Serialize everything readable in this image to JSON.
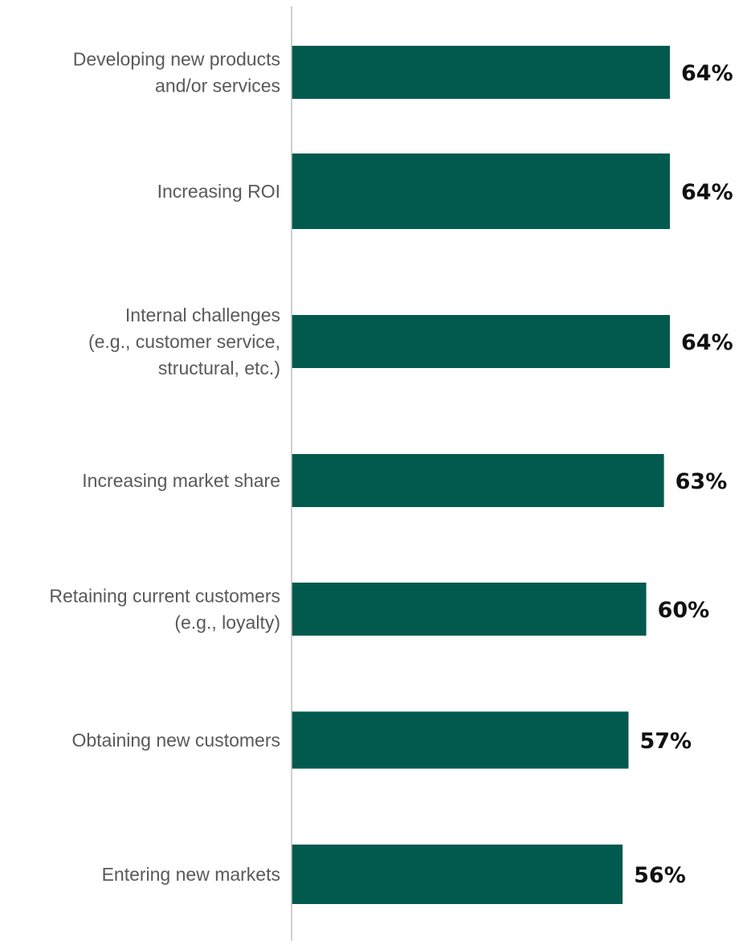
{
  "chart_data": {
    "type": "bar",
    "orientation": "horizontal",
    "categories": [
      [
        "Developing new products",
        "and/or services"
      ],
      [
        "Increasing ROI"
      ],
      [
        "Internal challenges",
        "(e.g., customer service,",
        "structural, etc.)"
      ],
      [
        "Increasing market share"
      ],
      [
        "Retaining current customers",
        "(e.g., loyalty)"
      ],
      [
        "Obtaining new customers"
      ],
      [
        "Entering new markets"
      ]
    ],
    "values": [
      64,
      64,
      64,
      63,
      60,
      57,
      56
    ],
    "value_labels": [
      "64%",
      "64%",
      "64%",
      "63%",
      "60%",
      "57%",
      "56%"
    ],
    "unit": "%",
    "xlim": [
      0,
      64
    ],
    "bar_color": "#025a4e",
    "axis_color": "#bfbfbf",
    "grid": false,
    "legend": "none"
  }
}
